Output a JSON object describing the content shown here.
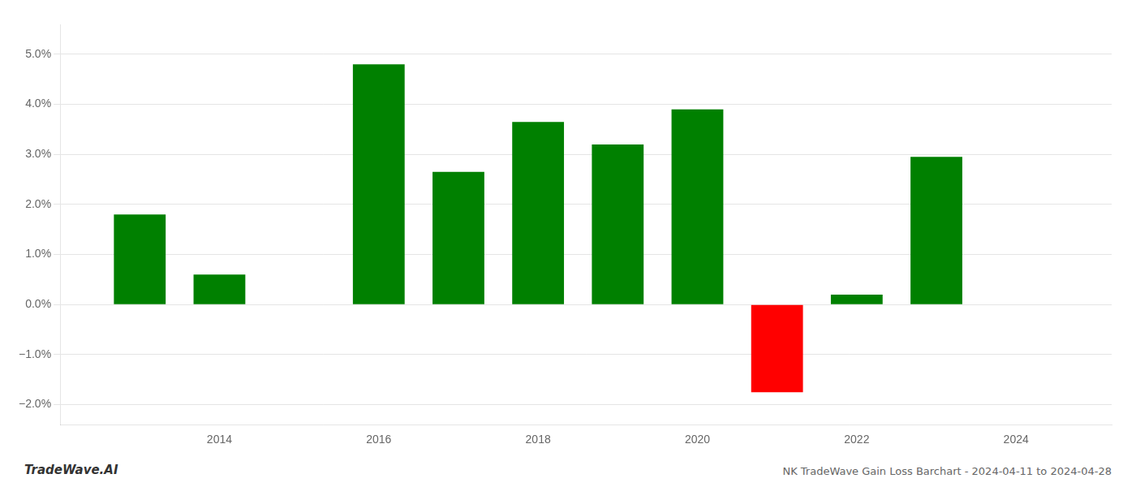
{
  "chart_data": {
    "type": "bar",
    "x": [
      2013,
      2014,
      2016,
      2017,
      2018,
      2019,
      2020,
      2021,
      2022,
      2023
    ],
    "values": [
      0.018,
      0.006,
      0.048,
      0.0265,
      0.0365,
      0.032,
      0.039,
      -0.0175,
      0.002,
      0.0295
    ],
    "colors": [
      "#008000",
      "#008000",
      "#008000",
      "#008000",
      "#008000",
      "#008000",
      "#008000",
      "#ff0000",
      "#008000",
      "#008000"
    ],
    "xlim": [
      2012.0,
      2025.2
    ],
    "xticks": [
      2014,
      2016,
      2018,
      2020,
      2022,
      2024
    ],
    "ylim": [
      -0.024,
      0.056
    ],
    "yticks": [
      {
        "value": -0.02,
        "label": "−2.0%"
      },
      {
        "value": -0.01,
        "label": "−1.0%"
      },
      {
        "value": 0.0,
        "label": "0.0%"
      },
      {
        "value": 0.01,
        "label": "1.0%"
      },
      {
        "value": 0.02,
        "label": "2.0%"
      },
      {
        "value": 0.03,
        "label": "3.0%"
      },
      {
        "value": 0.04,
        "label": "4.0%"
      },
      {
        "value": 0.05,
        "label": "5.0%"
      }
    ],
    "grid": "y",
    "annotations": [
      "TradeWave.AI",
      "NK TradeWave Gain Loss Barchart - 2024-04-11 to 2024-04-28"
    ]
  }
}
